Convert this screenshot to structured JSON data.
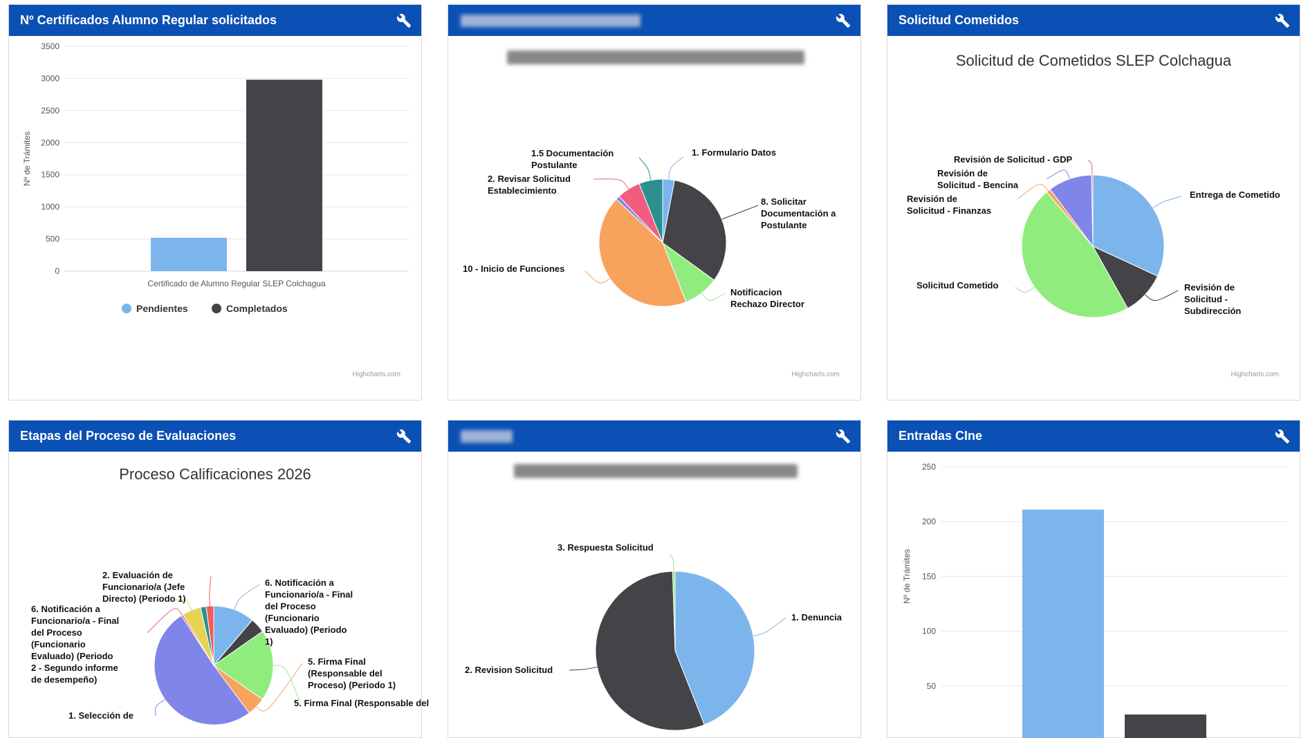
{
  "colors": {
    "header": "#0b50b4",
    "pendientes": "#7cb5ec",
    "completados": "#434348"
  },
  "panels": {
    "p1": {
      "title": "Nº Certificados Alumno Regular solicitados",
      "credits": "Highcharts.com"
    },
    "p2": {
      "title": "",
      "credits": "Highcharts.com"
    },
    "p3": {
      "title": "Solicitud Cometidos",
      "credits": "Highcharts.com"
    },
    "p4": {
      "title": "Etapas del Proceso de Evaluaciones"
    },
    "p5": {
      "title": ""
    },
    "p6": {
      "title": "Entradas CIne"
    }
  },
  "chart_data": [
    {
      "type": "bar",
      "panel": "p1",
      "title": "",
      "categories": [
        "Certificado de Alumno Regular SLEP Colchagua"
      ],
      "series": [
        {
          "name": "Pendientes",
          "values": [
            520
          ]
        },
        {
          "name": "Completados",
          "values": [
            2980
          ]
        }
      ],
      "ylabel": "Nº de Trámites",
      "ylim": [
        0,
        3500
      ],
      "yticks": [
        "0",
        "500",
        "1000",
        "1500",
        "2000",
        "2500",
        "3000",
        "3500"
      ],
      "legend": "bottom"
    },
    {
      "type": "pie",
      "panel": "p2",
      "title": "",
      "slices": [
        {
          "label": "1. Formulario Datos",
          "value": 3,
          "color": "#7cb5ec"
        },
        {
          "label": "8. Solicitar Documentación a Postulante",
          "value": 32,
          "color": "#434348"
        },
        {
          "label": "Notificacion Rechazo Director",
          "value": 9,
          "color": "#90ed7d"
        },
        {
          "label": "10 - Inicio de Funciones",
          "value": 43,
          "color": "#f7a35c"
        },
        {
          "label": "",
          "value": 1,
          "color": "#8085e9"
        },
        {
          "label": "2. Revisar Solicitud Establecimiento",
          "value": 6,
          "color": "#f15c80"
        },
        {
          "label": "1.5 Documentación Postulante",
          "value": 6,
          "color": "#2b908f"
        }
      ]
    },
    {
      "type": "pie",
      "panel": "p3",
      "title": "Solicitud de Cometidos SLEP Colchagua",
      "slices": [
        {
          "label": "Entrega de Cometido",
          "value": 32,
          "color": "#7cb5ec"
        },
        {
          "label": "Revisión de Solicitud - Subdirección",
          "value": 10,
          "color": "#434348"
        },
        {
          "label": "Solicitud Cometido",
          "value": 47,
          "color": "#90ed7d"
        },
        {
          "label": "Revisión de Solicitud - Finanzas",
          "value": 1,
          "color": "#f7a35c"
        },
        {
          "label": "Revisión de Solicitud - Bencina",
          "value": 10,
          "color": "#8085e9"
        },
        {
          "label": "Revisión de Solicitud - GDP",
          "value": 0.3,
          "color": "#f15c80"
        }
      ]
    },
    {
      "type": "pie",
      "panel": "p4",
      "title": "Proceso Calificaciones 2026",
      "slices": [
        {
          "label": "6. Notificación a Funcionario/a - Final del Proceso (Funcionario Evaluado) (Periodo 1)",
          "value": 11,
          "color": "#7cb5ec"
        },
        {
          "label": "",
          "value": 4,
          "color": "#434348"
        },
        {
          "label": "",
          "value": 19,
          "color": "#90ed7d"
        },
        {
          "label": "5. Firma Final (Responsable del Proceso) (Periodo 1)",
          "value": 5,
          "color": "#f7a35c"
        },
        {
          "label": "1. Selección de",
          "value": 50,
          "color": "#8085e9"
        },
        {
          "label": "6. Notificación a Funcionario/a - Final del Proceso (Funcionario Evaluado) (Periodo 2 - Segundo informe de desempeño)",
          "value": 0.5,
          "color": "#f15c80"
        },
        {
          "label": "2. Evaluación de Funcionario/a (Jefe Directo) (Periodo 1)",
          "value": 5,
          "color": "#e4d354"
        },
        {
          "label": "",
          "value": 1.5,
          "color": "#2b908f"
        },
        {
          "label": "",
          "value": 2,
          "color": "#f45b5b"
        }
      ],
      "extra_labels": [
        "5. Firma Final (Responsable del"
      ]
    },
    {
      "type": "pie",
      "panel": "p5",
      "title": "",
      "slices": [
        {
          "label": "1. Denuncia",
          "value": 44,
          "color": "#7cb5ec"
        },
        {
          "label": "2. Revision Solicitud",
          "value": 55.5,
          "color": "#434348"
        },
        {
          "label": "3. Respuesta Solicitud",
          "value": 0.5,
          "color": "#90ed7d"
        }
      ]
    },
    {
      "type": "bar",
      "panel": "p6",
      "title": "",
      "categories": [
        ""
      ],
      "series": [
        {
          "name": "",
          "values": [
            211
          ]
        },
        {
          "name": "",
          "values": [
            24
          ]
        }
      ],
      "ylabel": "Nº de Trámites",
      "ylim": [
        0,
        250
      ],
      "yticks": [
        "50",
        "100",
        "150",
        "200",
        "250"
      ]
    }
  ]
}
